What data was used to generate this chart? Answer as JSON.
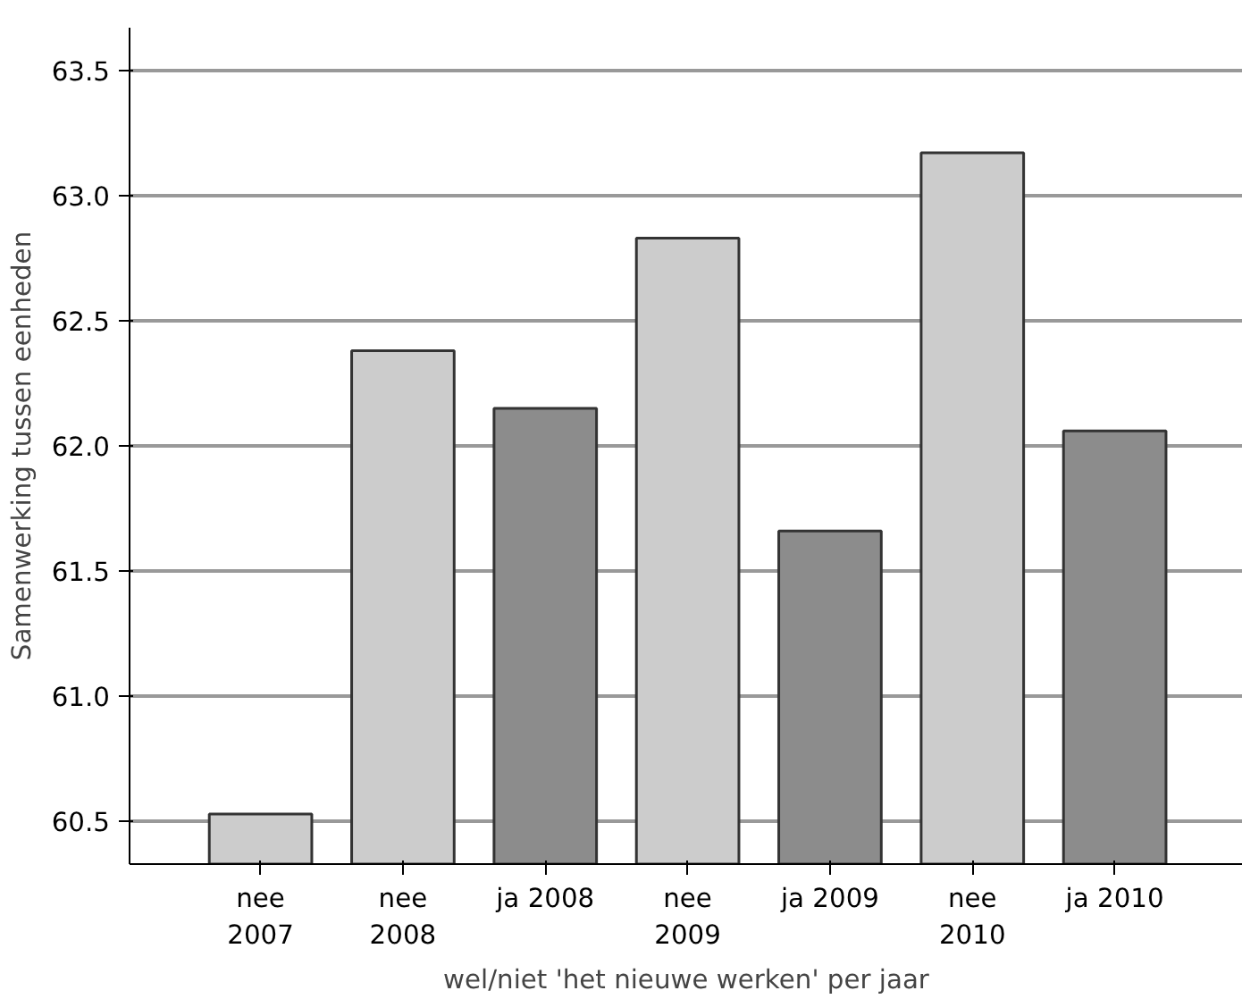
{
  "chart_data": {
    "type": "bar",
    "xlabel": "wel/niet 'het nieuwe werken' per jaar",
    "ylabel": "Samenwerking tussen eenheden",
    "categories": [
      "nee\n2007",
      "nee\n2008",
      "ja 2008",
      "nee\n2009",
      "ja 2009",
      "nee\n2010",
      "ja 2010"
    ],
    "values": [
      60.53,
      62.38,
      62.15,
      62.83,
      61.66,
      63.17,
      62.06
    ],
    "colors": [
      "#cccccc",
      "#cccccc",
      "#8c8c8c",
      "#cccccc",
      "#8c8c8c",
      "#cccccc",
      "#8c8c8c"
    ],
    "ylim": [
      60.33,
      63.67
    ],
    "yticks": [
      {
        "value": 60.5,
        "label": "60.5"
      },
      {
        "value": 61.0,
        "label": "61.0"
      },
      {
        "value": 61.5,
        "label": "61.5"
      },
      {
        "value": 62.0,
        "label": "62.0"
      },
      {
        "value": 62.5,
        "label": "62.5"
      },
      {
        "value": 63.0,
        "label": "63.0"
      },
      {
        "value": 63.5,
        "label": "63.5"
      }
    ],
    "grid": "y"
  }
}
